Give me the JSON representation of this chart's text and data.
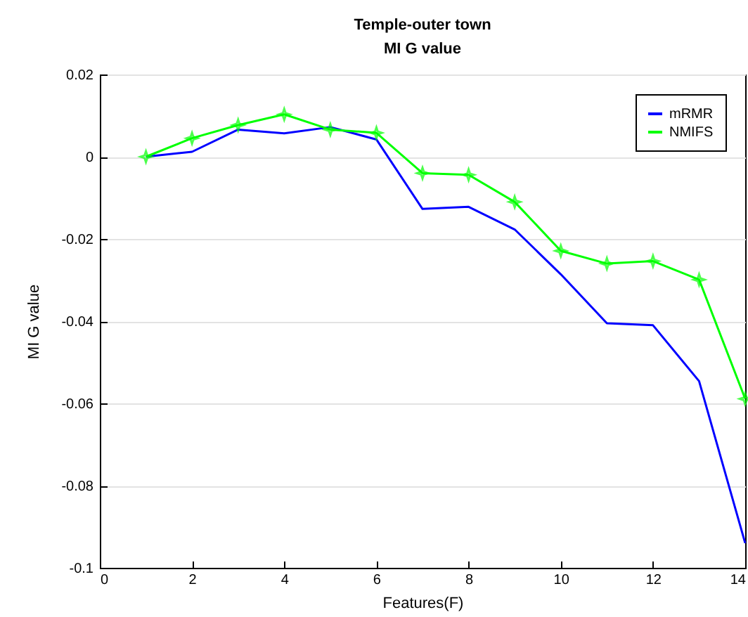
{
  "chart_data": {
    "type": "line",
    "title": "Temple-outer town",
    "subtitle": "MI G value",
    "xlabel": "Features(F)",
    "ylabel": "MI G value",
    "x": [
      1,
      2,
      3,
      4,
      5,
      6,
      7,
      8,
      9,
      10,
      11,
      12,
      13,
      14
    ],
    "series": [
      {
        "name": "mRMR",
        "color": "#0000ff",
        "marker": "none",
        "values": [
          0,
          0.0012,
          0.0066,
          0.0057,
          0.0072,
          0.0042,
          -0.0127,
          -0.0122,
          -0.0177,
          -0.0286,
          -0.0405,
          -0.041,
          -0.0546,
          -0.094
        ]
      },
      {
        "name": "NMIFS",
        "color": "#00ff00",
        "marker": "star",
        "values": [
          0,
          0.0045,
          0.0077,
          0.0103,
          0.0066,
          0.0058,
          -0.004,
          -0.0044,
          -0.011,
          -0.0229,
          -0.026,
          -0.0254,
          -0.0299,
          -0.0589
        ]
      }
    ],
    "xlim": [
      0,
      14
    ],
    "xticks": [
      0,
      2,
      4,
      6,
      8,
      10,
      12,
      14
    ],
    "ylim": [
      -0.1,
      0.02
    ],
    "yticks": [
      -0.1,
      -0.08,
      -0.06,
      -0.04,
      -0.02,
      0,
      0.02
    ],
    "grid": "y",
    "legend": "top right",
    "line_style": "solid"
  }
}
